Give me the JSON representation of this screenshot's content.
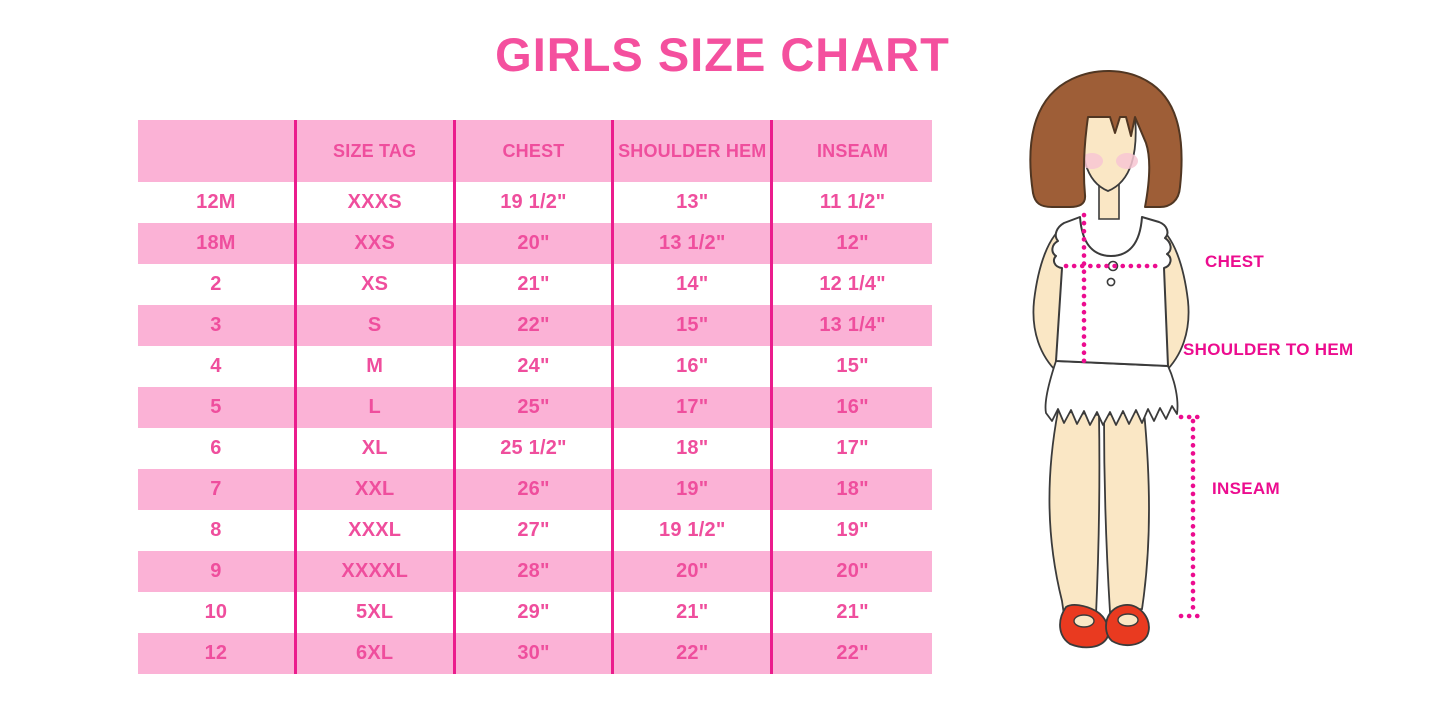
{
  "title": "GIRLS SIZE CHART",
  "chart_data": {
    "type": "table",
    "title": "GIRLS SIZE CHART",
    "columns": [
      "",
      "SIZE TAG",
      "CHEST",
      "SHOULDER HEM",
      "INSEAM"
    ],
    "rows": [
      [
        "12M",
        "XXXS",
        "19 1/2\"",
        "13\"",
        "11 1/2\""
      ],
      [
        "18M",
        "XXS",
        "20\"",
        "13 1/2\"",
        "12\""
      ],
      [
        "2",
        "XS",
        "21\"",
        "14\"",
        "12 1/4\""
      ],
      [
        "3",
        "S",
        "22\"",
        "15\"",
        "13 1/4\""
      ],
      [
        "4",
        "M",
        "24\"",
        "16\"",
        "15\""
      ],
      [
        "5",
        "L",
        "25\"",
        "17\"",
        "16\""
      ],
      [
        "6",
        "XL",
        "25 1/2\"",
        "18\"",
        "17\""
      ],
      [
        "7",
        "XXL",
        "26\"",
        "19\"",
        "18\""
      ],
      [
        "8",
        "XXXL",
        "27\"",
        "19 1/2\"",
        "19\""
      ],
      [
        "9",
        "XXXXL",
        "28\"",
        "20\"",
        "20\""
      ],
      [
        "10",
        "5XL",
        "29\"",
        "21\"",
        "21\""
      ],
      [
        "12",
        "6XL",
        "30\"",
        "22\"",
        "22\""
      ]
    ],
    "row_stripe_pattern": "white/pink alternating, header pink"
  },
  "figure_labels": {
    "chest": "CHEST",
    "shoulder_to_hem": "SHOULDER TO HEM",
    "inseam": "INSEAM"
  },
  "colors": {
    "title_pink": "#F4509E",
    "row_pink": "#FBB2D6",
    "row_white": "#FFFFFF",
    "column_divider": "#EB1C8D",
    "cell_text": "#EF4E9D",
    "measurement_magenta": "#EC0C8F",
    "hair_brown": "#9E5E37",
    "skin": "#FAE7C5",
    "blush": "#F7C6D2",
    "shoe_red": "#E93A20"
  }
}
